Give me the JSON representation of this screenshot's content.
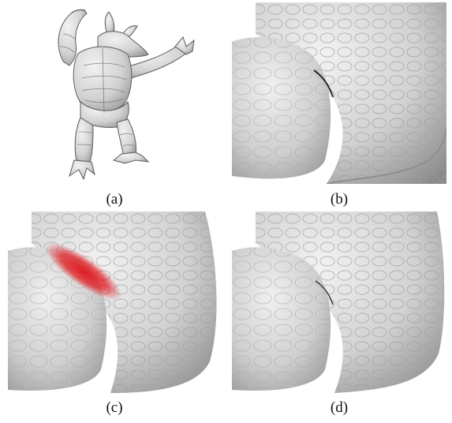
{
  "figure": {
    "panels": [
      {
        "id": "a",
        "caption": "(a)"
      },
      {
        "id": "b",
        "caption": "(b)"
      },
      {
        "id": "c",
        "caption": "(c)"
      },
      {
        "id": "d",
        "caption": "(d)"
      }
    ],
    "colors": {
      "mesh_light": "#e6e6e6",
      "mesh_mid": "#bdbdbd",
      "mesh_dark": "#7a7a7a",
      "highlight": "#e0141a"
    }
  }
}
